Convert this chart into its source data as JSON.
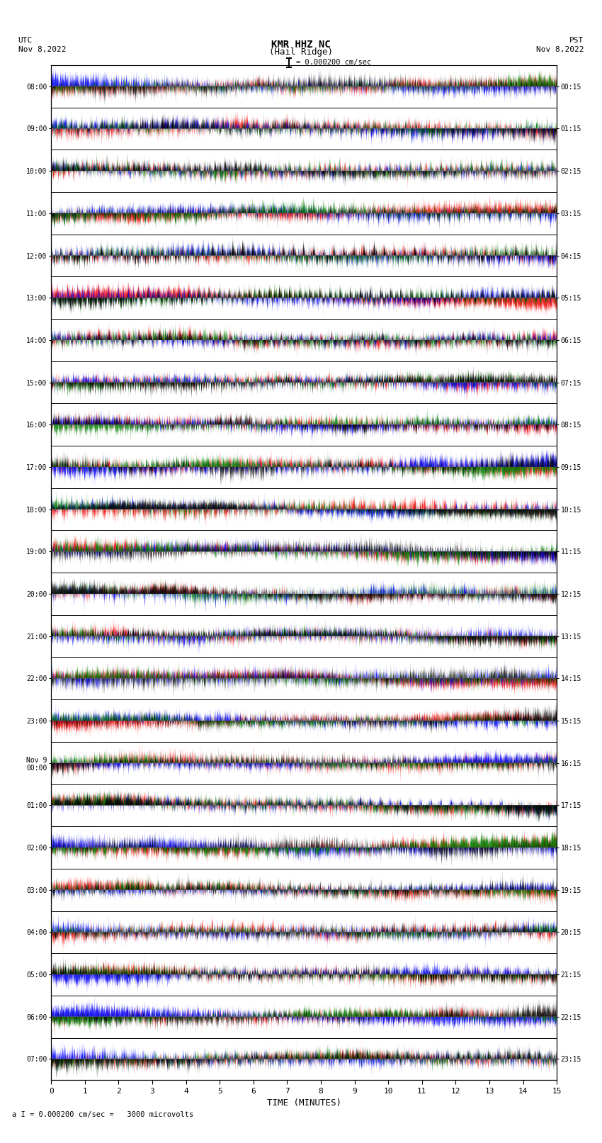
{
  "title_line1": "KMR HHZ NC",
  "title_line2": "(Hail Ridge)",
  "scale_label": "= 0.000200 cm/sec",
  "utc_label": "UTC\nNov 8,2022",
  "pst_label": "PST\nNov 8,2022",
  "bottom_label": "a I = 0.000200 cm/sec =   3000 microvolts",
  "xlabel": "TIME (MINUTES)",
  "left_times": [
    "08:00",
    "09:00",
    "10:00",
    "11:00",
    "12:00",
    "13:00",
    "14:00",
    "15:00",
    "16:00",
    "17:00",
    "18:00",
    "19:00",
    "20:00",
    "21:00",
    "22:00",
    "23:00",
    "Nov 9\n00:00",
    "01:00",
    "02:00",
    "03:00",
    "04:00",
    "05:00",
    "06:00",
    "07:00"
  ],
  "right_times": [
    "00:15",
    "01:15",
    "02:15",
    "03:15",
    "04:15",
    "05:15",
    "06:15",
    "07:15",
    "08:15",
    "09:15",
    "10:15",
    "11:15",
    "12:15",
    "13:15",
    "14:15",
    "15:15",
    "16:15",
    "17:15",
    "18:15",
    "19:15",
    "20:15",
    "21:15",
    "22:15",
    "23:15"
  ],
  "n_traces": 24,
  "trace_duration_minutes": 15,
  "samples_per_trace": 9000,
  "bg_color": "white",
  "figure_width": 8.5,
  "figure_height": 16.13,
  "dpi": 100
}
